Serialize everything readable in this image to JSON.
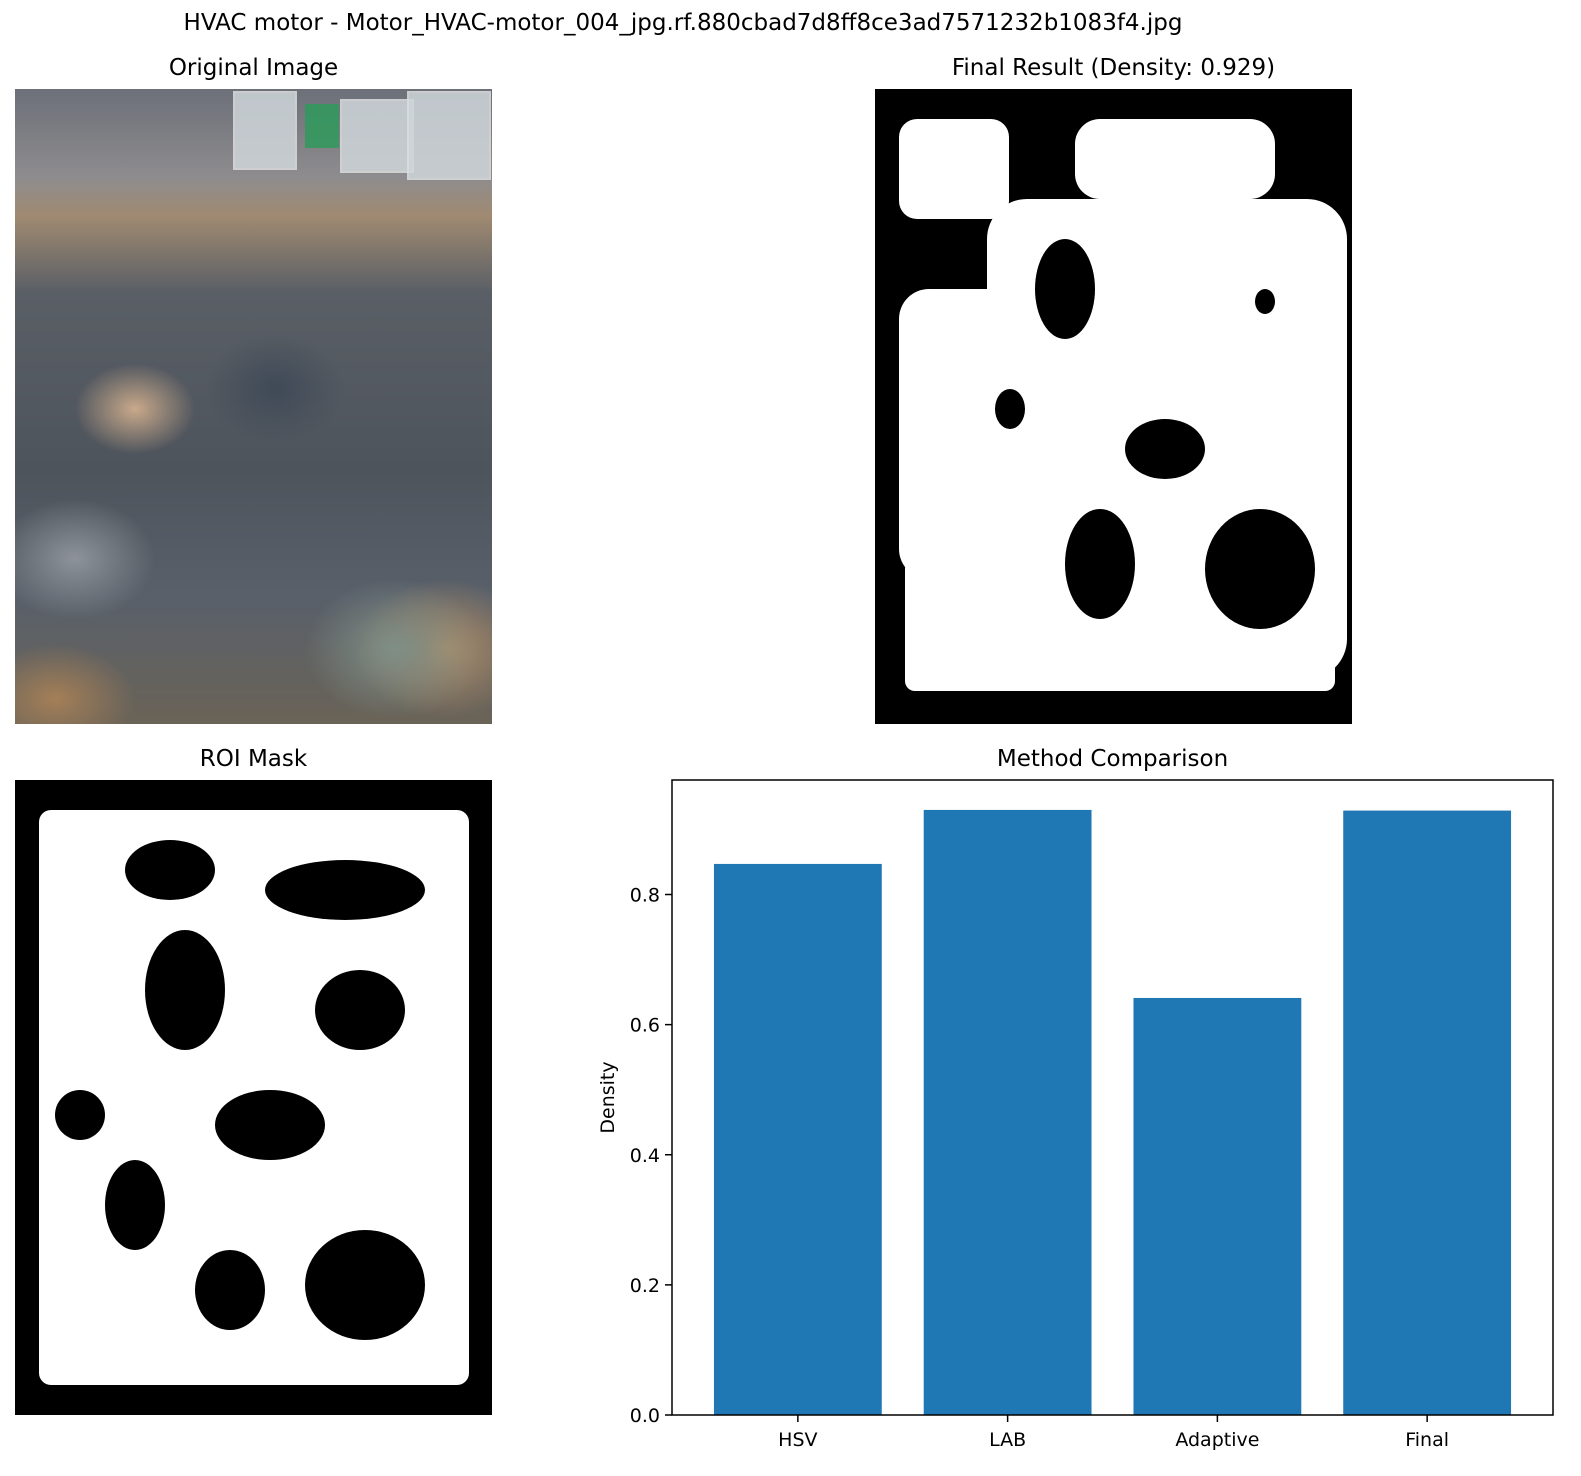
{
  "figure": {
    "title": "HVAC motor - Motor_HVAC-motor_004_jpg.rf.880cbad7d8ff8ce3ad7571232b1083f4.jpg"
  },
  "panels": {
    "original": {
      "title": "Original Image"
    },
    "final": {
      "title": "Final Result (Density: 0.929)"
    },
    "roi": {
      "title": "ROI Mask"
    }
  },
  "chart_data": {
    "type": "bar",
    "title": "Method Comparison",
    "xlabel": "",
    "ylabel": "Density",
    "categories": [
      "HSV",
      "LAB",
      "Adaptive",
      "Final"
    ],
    "values": [
      0.847,
      0.93,
      0.641,
      0.929
    ],
    "ylim": [
      0,
      0.976
    ],
    "yticks": [
      0.0,
      0.2,
      0.4,
      0.6,
      0.8
    ],
    "ytick_labels": [
      "0.0",
      "0.2",
      "0.4",
      "0.6",
      "0.8"
    ],
    "bar_color": "#1f77b4",
    "grid": false,
    "legend": "none"
  }
}
